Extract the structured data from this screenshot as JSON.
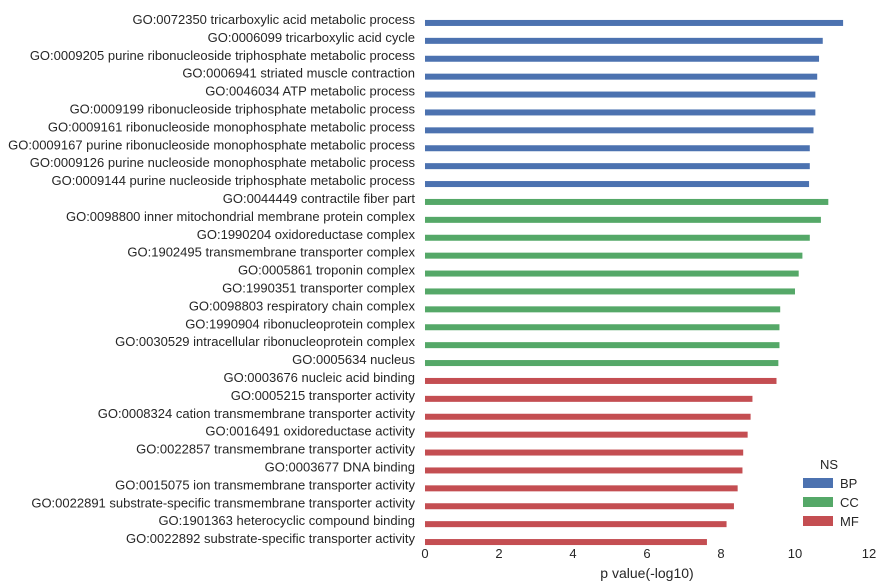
{
  "chart_data": {
    "type": "bar",
    "orientation": "horizontal",
    "xlabel": "p value(-log10)",
    "xlim": [
      0,
      12
    ],
    "xticks": [
      "0",
      "2",
      "4",
      "6",
      "8",
      "10",
      "12"
    ],
    "grid": false,
    "legend": {
      "title": "NS",
      "placement": "bottom-right",
      "entries": [
        {
          "name": "BP",
          "color": "#4C72B0"
        },
        {
          "name": "CC",
          "color": "#55A868"
        },
        {
          "name": "MF",
          "color": "#C44E52"
        }
      ]
    },
    "categories": [
      "GO:0072350 tricarboxylic acid metabolic process",
      "GO:0006099 tricarboxylic acid cycle",
      "GO:0009205 purine ribonucleoside triphosphate metabolic process",
      "GO:0006941 striated muscle contraction",
      "GO:0046034 ATP metabolic process",
      "GO:0009199 ribonucleoside triphosphate metabolic process",
      "GO:0009161 ribonucleoside monophosphate metabolic process",
      "GO:0009167 purine ribonucleoside monophosphate metabolic process",
      "GO:0009126 purine nucleoside monophosphate metabolic process",
      "GO:0009144 purine nucleoside triphosphate metabolic process",
      "GO:0044449 contractile fiber part",
      "GO:0098800 inner mitochondrial membrane protein complex",
      "GO:1990204 oxidoreductase complex",
      "GO:1902495 transmembrane transporter complex",
      "GO:0005861 troponin complex",
      "GO:1990351 transporter complex",
      "GO:0098803 respiratory chain complex",
      "GO:1990904 ribonucleoprotein complex",
      "GO:0030529 intracellular ribonucleoprotein complex",
      "GO:0005634 nucleus",
      "GO:0003676 nucleic acid binding",
      "GO:0005215 transporter activity",
      "GO:0008324 cation transmembrane transporter activity",
      "GO:0016491 oxidoreductase activity",
      "GO:0022857 transmembrane transporter activity",
      "GO:0003677 DNA binding",
      "GO:0015075 ion transmembrane transporter activity",
      "GO:0022891 substrate-specific transmembrane transporter activity",
      "GO:1901363 heterocyclic compound binding",
      "GO:0022892 substrate-specific transporter activity"
    ],
    "values": [
      11.3,
      10.75,
      10.65,
      10.6,
      10.55,
      10.55,
      10.5,
      10.4,
      10.4,
      10.38,
      10.9,
      10.7,
      10.4,
      10.2,
      10.1,
      10.0,
      9.6,
      9.58,
      9.58,
      9.55,
      9.5,
      8.85,
      8.8,
      8.72,
      8.6,
      8.58,
      8.45,
      8.35,
      8.15,
      7.62
    ],
    "groups": [
      "BP",
      "BP",
      "BP",
      "BP",
      "BP",
      "BP",
      "BP",
      "BP",
      "BP",
      "BP",
      "CC",
      "CC",
      "CC",
      "CC",
      "CC",
      "CC",
      "CC",
      "CC",
      "CC",
      "CC",
      "MF",
      "MF",
      "MF",
      "MF",
      "MF",
      "MF",
      "MF",
      "MF",
      "MF",
      "MF"
    ]
  }
}
